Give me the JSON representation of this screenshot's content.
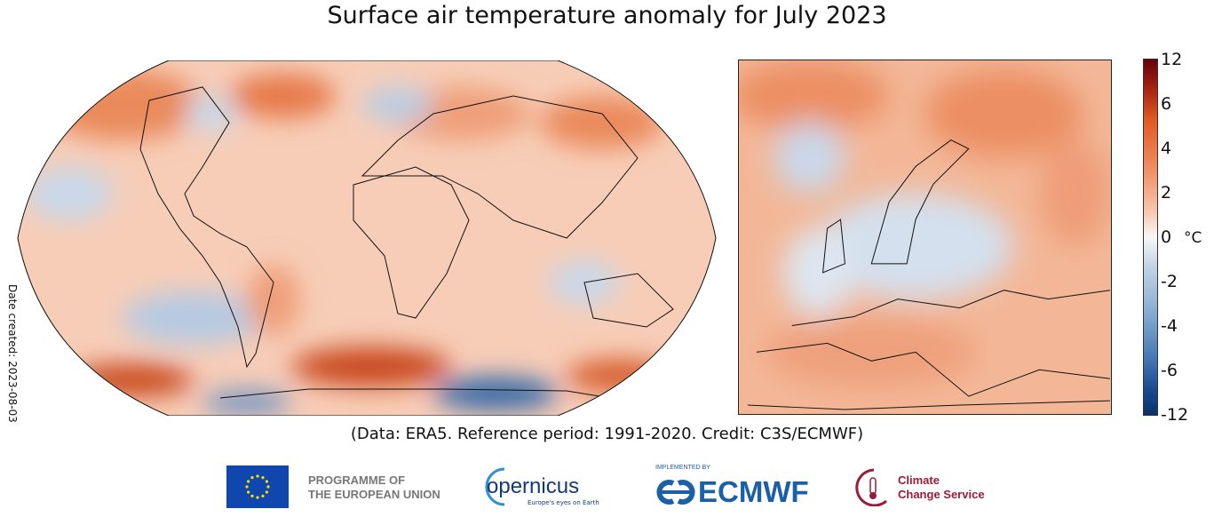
{
  "title": "Surface air temperature anomaly for July 2023",
  "date_created": "Date created: 2023-08-03",
  "credit": "(Data: ERA5.  Reference period: 1991-2020.  Credit: C3S/ECMWF)",
  "colorbar": {
    "unit": "°C",
    "ticks": [
      "12",
      "6",
      "4",
      "2",
      "0",
      "-2",
      "-4",
      "-6",
      "-12"
    ],
    "colors": {
      "max": "#67000d",
      "warm": "#e05a22",
      "neutral": "#f7f7f7",
      "cool": "#8fb0d3",
      "min": "#08306b"
    }
  },
  "maps": {
    "global": "world-robinson",
    "regional": "europe"
  },
  "logos": {
    "eu": "PROGRAMME OF\nTHE EUROPEAN UNION",
    "eu_line1": "PROGRAMME OF",
    "eu_line2": "THE EUROPEAN UNION",
    "copernicus": "opernicus",
    "copernicus_tagline": "Europe's eyes on Earth",
    "implemented_by": "IMPLEMENTED BY",
    "ecmwf": "ECMWF",
    "c3s_line1": "Climate",
    "c3s_line2": "Change Service"
  }
}
